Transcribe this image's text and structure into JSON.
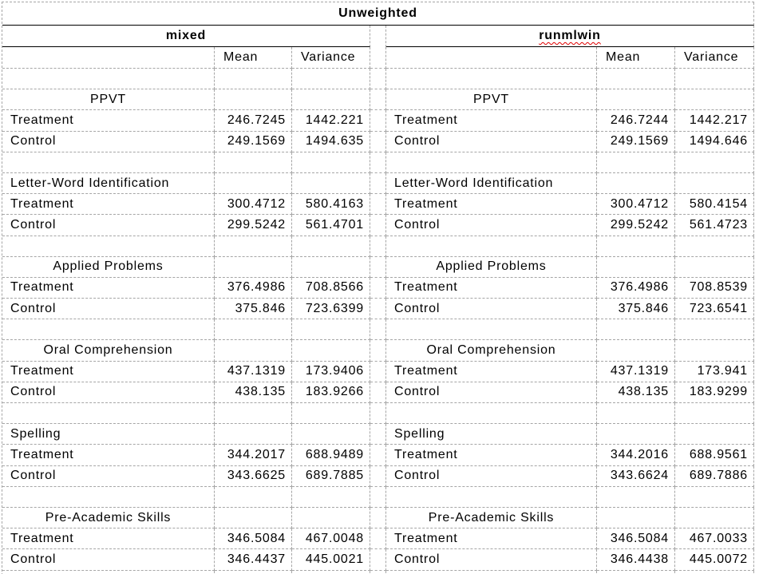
{
  "title": "Unweighted",
  "methods": {
    "left": "mixed",
    "right": "runmlwin"
  },
  "column_headers": {
    "mean": "Mean",
    "variance": "Variance"
  },
  "sections": [
    {
      "title": "PPVT",
      "title_align": "center",
      "rows": [
        {
          "label": "Treatment",
          "mixed": {
            "mean": "246.7245",
            "variance": "1442.221"
          },
          "runmlwin": {
            "mean": "246.7244",
            "variance": "1442.217"
          }
        },
        {
          "label": "Control",
          "mixed": {
            "mean": "249.1569",
            "variance": "1494.635"
          },
          "runmlwin": {
            "mean": "249.1569",
            "variance": "1494.646"
          }
        }
      ]
    },
    {
      "title": "Letter-Word Identification",
      "title_align": "left",
      "rows": [
        {
          "label": "Treatment",
          "mixed": {
            "mean": "300.4712",
            "variance": "580.4163"
          },
          "runmlwin": {
            "mean": "300.4712",
            "variance": "580.4154"
          }
        },
        {
          "label": "Control",
          "mixed": {
            "mean": "299.5242",
            "variance": "561.4701"
          },
          "runmlwin": {
            "mean": "299.5242",
            "variance": "561.4723"
          }
        }
      ]
    },
    {
      "title": "Applied Problems",
      "title_align": "center",
      "rows": [
        {
          "label": "Treatment",
          "mixed": {
            "mean": "376.4986",
            "variance": "708.8566"
          },
          "runmlwin": {
            "mean": "376.4986",
            "variance": "708.8539"
          }
        },
        {
          "label": "Control",
          "mixed": {
            "mean": "375.846",
            "variance": "723.6399"
          },
          "runmlwin": {
            "mean": "375.846",
            "variance": "723.6541"
          }
        }
      ]
    },
    {
      "title": "Oral Comprehension",
      "title_align": "center",
      "rows": [
        {
          "label": "Treatment",
          "mixed": {
            "mean": "437.1319",
            "variance": "173.9406"
          },
          "runmlwin": {
            "mean": "437.1319",
            "variance": "173.941"
          }
        },
        {
          "label": "Control",
          "mixed": {
            "mean": "438.135",
            "variance": "183.9266"
          },
          "runmlwin": {
            "mean": "438.135",
            "variance": "183.9299"
          }
        }
      ]
    },
    {
      "title": "Spelling",
      "title_align": "left",
      "rows": [
        {
          "label": "Treatment",
          "mixed": {
            "mean": "344.2017",
            "variance": "688.9489"
          },
          "runmlwin": {
            "mean": "344.2016",
            "variance": "688.9561"
          }
        },
        {
          "label": "Control",
          "mixed": {
            "mean": "343.6625",
            "variance": "689.7885"
          },
          "runmlwin": {
            "mean": "343.6624",
            "variance": "689.7886"
          }
        }
      ]
    },
    {
      "title": "Pre-Academic Skills",
      "title_align": "center",
      "rows": [
        {
          "label": "Treatment",
          "mixed": {
            "mean": "346.5084",
            "variance": "467.0048"
          },
          "runmlwin": {
            "mean": "346.5084",
            "variance": "467.0033"
          }
        },
        {
          "label": "Control",
          "mixed": {
            "mean": "346.4437",
            "variance": "445.0021"
          },
          "runmlwin": {
            "mean": "346.4438",
            "variance": "445.0072"
          }
        }
      ]
    }
  ],
  "colors": {
    "text": "#000000",
    "grid_line": "#a6a6a6",
    "solid_border": "#000000",
    "spellcheck_underline": "#e00000",
    "background": "#ffffff"
  }
}
